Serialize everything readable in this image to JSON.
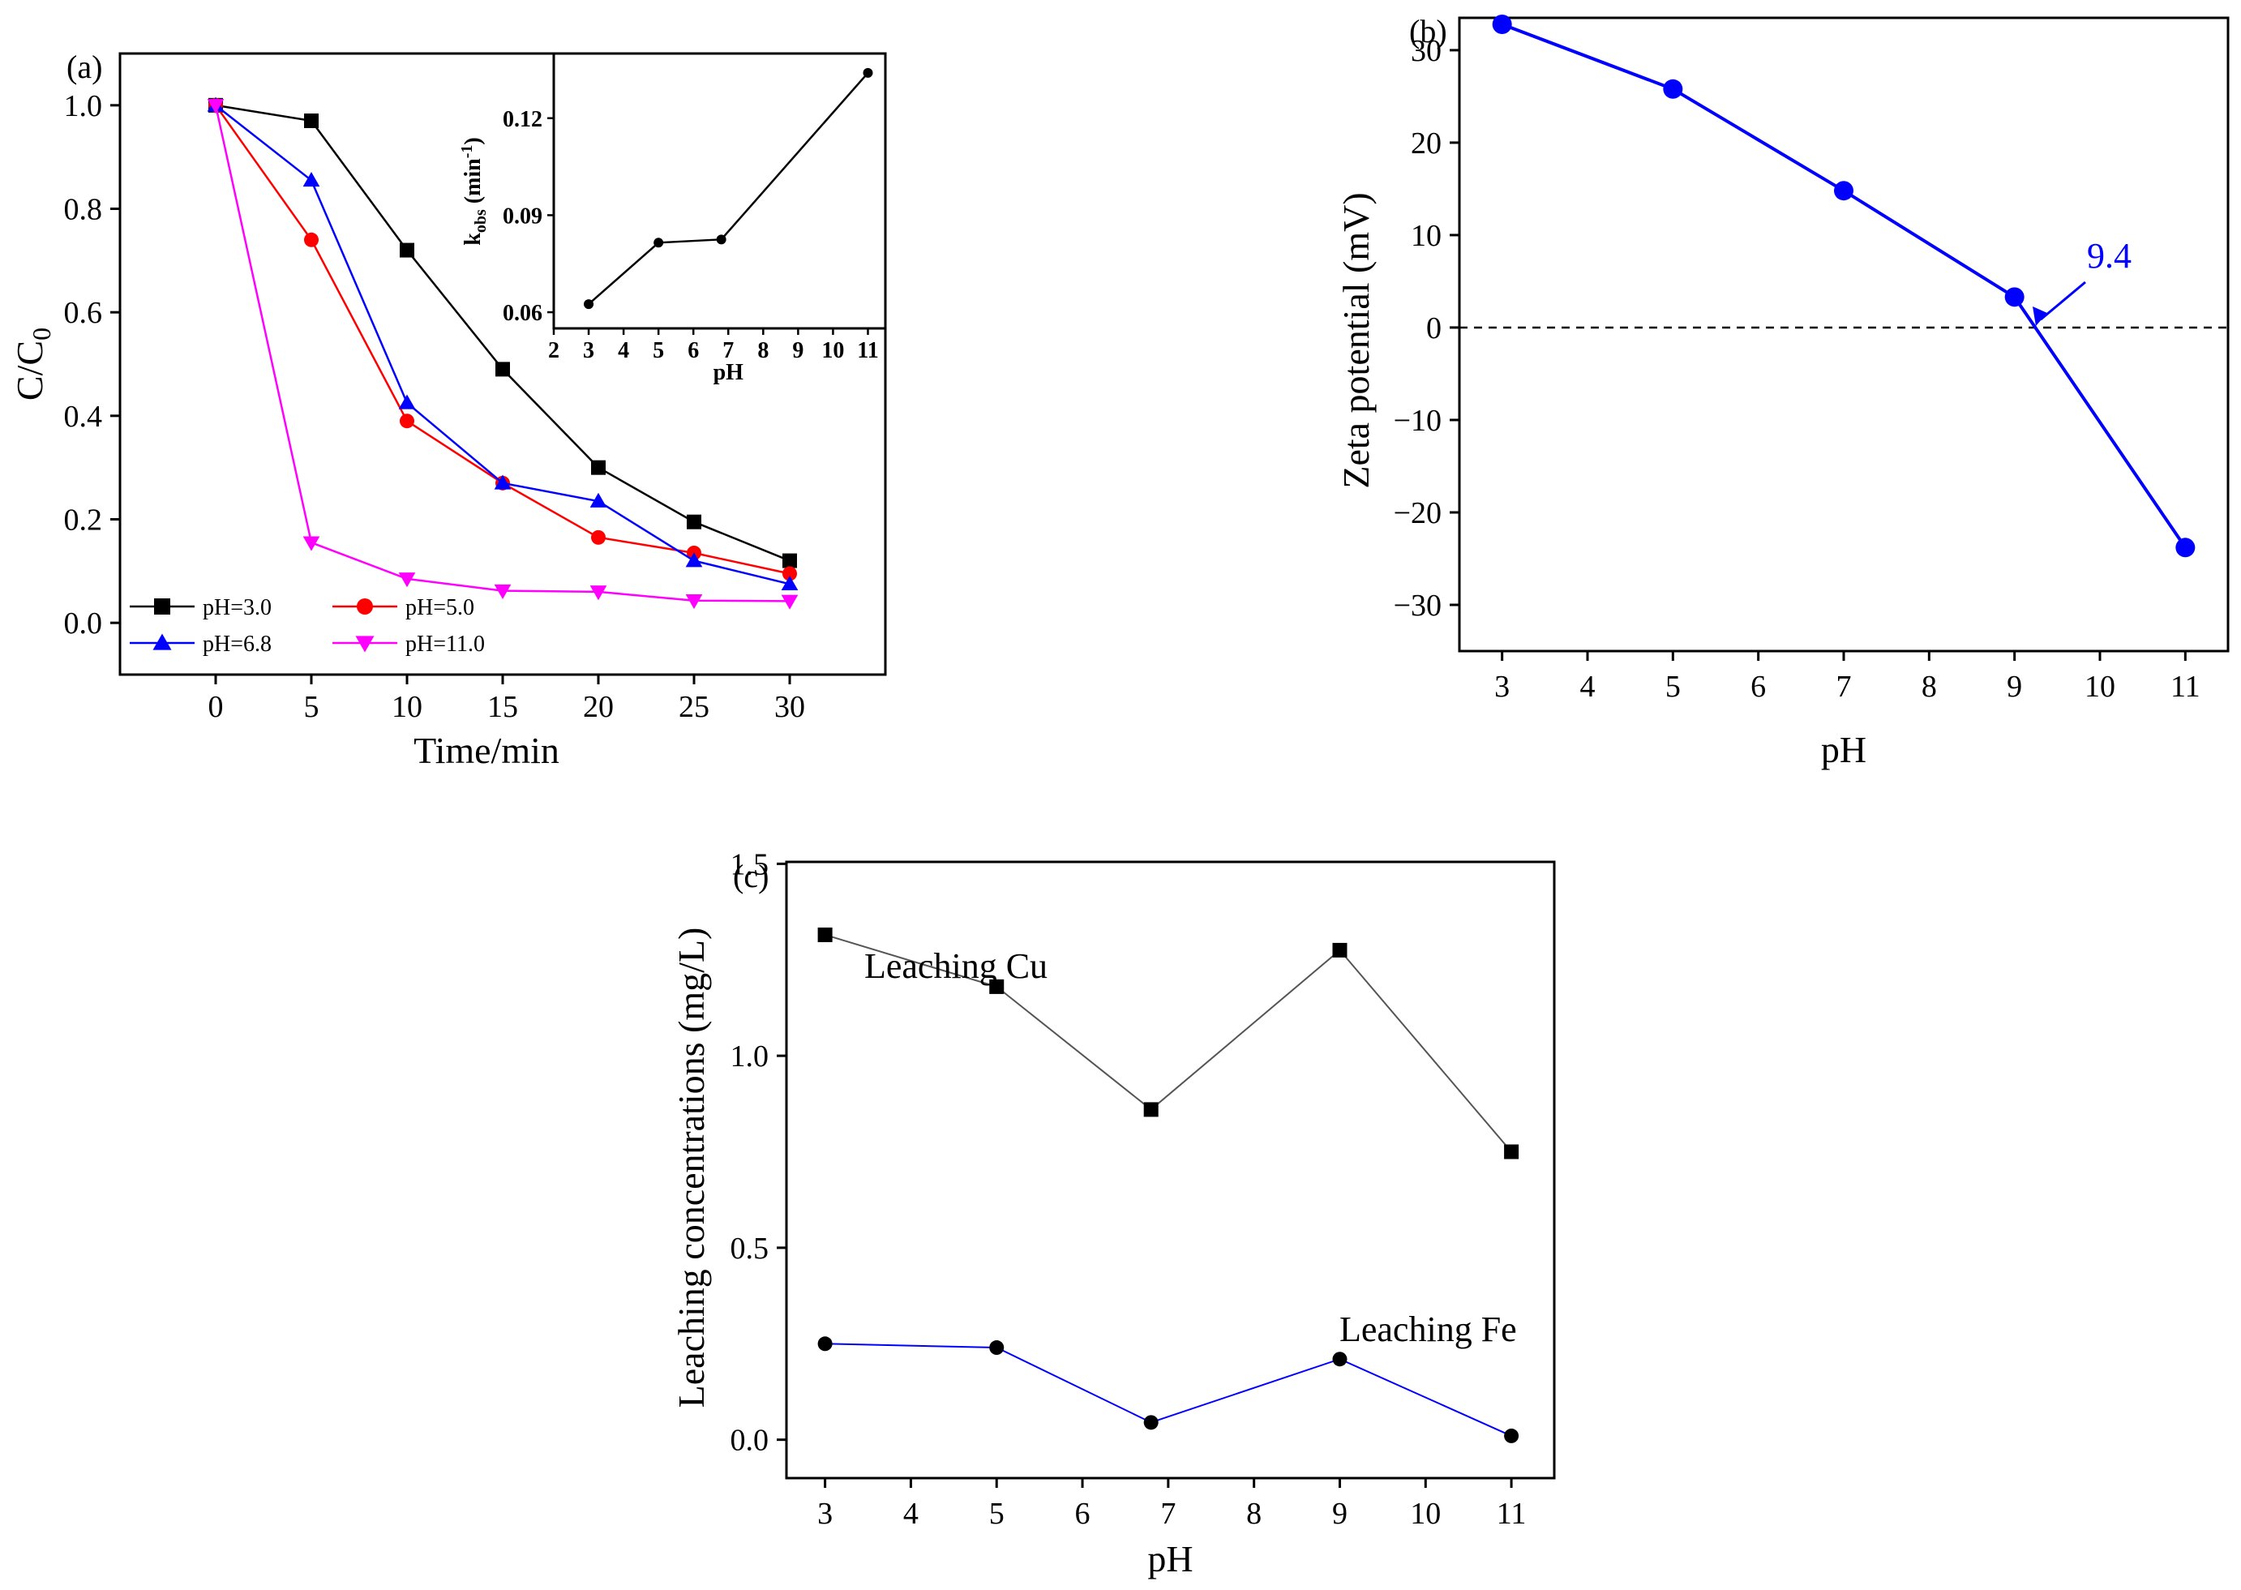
{
  "chart_data": [
    {
      "panel": "(a)",
      "type": "line",
      "xlabel": "Time/min",
      "ylabel": "C/C0",
      "ylabel_main": "C/C",
      "ylabel_sub": "0",
      "xlim": [
        -5,
        35
      ],
      "ylim": [
        -0.1,
        1.1
      ],
      "xticks": [
        0,
        5,
        10,
        15,
        20,
        25,
        30
      ],
      "yticks": [
        0.0,
        0.2,
        0.4,
        0.6,
        0.8,
        1.0
      ],
      "x": [
        0,
        5,
        10,
        15,
        20,
        25,
        30
      ],
      "series": [
        {
          "name": "pH=3.0",
          "marker": "square",
          "color": "#000000",
          "values": [
            1.0,
            0.97,
            0.72,
            0.49,
            0.3,
            0.195,
            0.12
          ]
        },
        {
          "name": "pH=5.0",
          "marker": "circle",
          "color": "#ff0000",
          "values": [
            1.0,
            0.74,
            0.39,
            0.27,
            0.165,
            0.135,
            0.095
          ]
        },
        {
          "name": "pH=6.8",
          "marker": "triangle-up",
          "color": "#0000ff",
          "values": [
            1.0,
            0.855,
            0.425,
            0.27,
            0.235,
            0.12,
            0.075
          ]
        },
        {
          "name": "pH=11.0",
          "marker": "triangle-down",
          "color": "#ff00ff",
          "values": [
            1.0,
            0.155,
            0.085,
            0.062,
            0.06,
            0.043,
            0.042
          ]
        }
      ],
      "legend_placement": "bottom-left",
      "inset": {
        "type": "line",
        "xlabel": "pH",
        "ylabel": "kobs (min-1)",
        "ylabel_parts": [
          "k",
          "obs",
          " (min",
          "-1",
          ")"
        ],
        "xlim": [
          2,
          11.5
        ],
        "ylim": [
          0.055,
          0.14
        ],
        "xticks": [
          2,
          3,
          4,
          5,
          6,
          7,
          8,
          9,
          10,
          11
        ],
        "yticks": [
          0.06,
          0.09,
          0.12
        ],
        "ytick_labels": [
          "0.06",
          "0.09",
          "0.12"
        ],
        "x": [
          3,
          5,
          6.8,
          11
        ],
        "values": [
          0.0625,
          0.0815,
          0.0825,
          0.134
        ],
        "color": "#000000"
      }
    },
    {
      "panel": "(b)",
      "type": "line",
      "xlabel": "pH",
      "ylabel": "Zeta potential (mV)",
      "xlim": [
        2.5,
        11.5
      ],
      "ylim": [
        -35,
        33.5
      ],
      "xticks": [
        3,
        4,
        5,
        6,
        7,
        8,
        9,
        10,
        11
      ],
      "yticks": [
        -30,
        -20,
        -10,
        0,
        10,
        20,
        30
      ],
      "ytick_labels": [
        "−30",
        "−20",
        "−10",
        "0",
        "10",
        "20",
        "30"
      ],
      "x": [
        3,
        5,
        7,
        9,
        11
      ],
      "values": [
        32.8,
        25.8,
        14.8,
        3.3,
        -23.8
      ],
      "color": "#0000ff",
      "zero_line": "dashed",
      "annotation": {
        "text": "9.4",
        "x": 9.25,
        "y": 0
      }
    },
    {
      "panel": "(c)",
      "type": "line",
      "xlabel": "pH",
      "ylabel": "Leaching concentrations (mg/L)",
      "xlim": [
        2.55,
        11.5
      ],
      "ylim": [
        -0.1,
        1.505
      ],
      "xticks": [
        3,
        4,
        5,
        6,
        7,
        8,
        9,
        10,
        11
      ],
      "yticks": [
        0.0,
        0.5,
        1.0,
        1.5
      ],
      "ytick_labels": [
        "0.0",
        "0.5",
        "1.0",
        "1.5"
      ],
      "x": [
        3,
        5,
        6.8,
        9,
        11
      ],
      "series": [
        {
          "name": "Leaching Cu",
          "marker": "square",
          "color": "#000000",
          "line_color": "#555555",
          "values": [
            1.315,
            1.18,
            0.86,
            1.275,
            0.75
          ]
        },
        {
          "name": "Leaching Fe",
          "marker": "circle",
          "color": "#000000",
          "line_color": "#0000ff",
          "values": [
            0.25,
            0.24,
            0.045,
            0.21,
            0.01
          ]
        }
      ]
    }
  ]
}
